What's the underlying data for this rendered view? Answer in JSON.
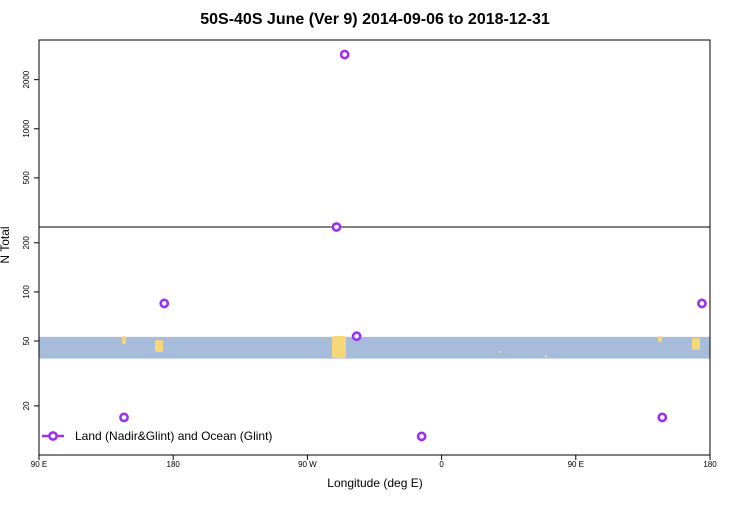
{
  "chart_data": {
    "type": "scatter",
    "title": "50S-40S June (Ver 9)   2014-09-06 to 2018-12-31",
    "x_label": "Longitude (deg E)",
    "y_label": "N Total",
    "xlim": [
      90,
      540
    ],
    "xticks": [
      {
        "value": 90,
        "label": "90 E"
      },
      180,
      {
        "value": 270,
        "label": "90 W"
      },
      {
        "value": 360,
        "label": "0"
      },
      {
        "value": 450,
        "label": "90 E"
      },
      {
        "value": 540,
        "label": "180"
      }
    ],
    "log_scale": true,
    "panels": [
      {
        "ylim": [
          10,
          250
        ],
        "yticks": [
          20,
          50,
          100,
          200
        ]
      },
      {
        "ylim": [
          250,
          3500
        ],
        "yticks": [
          500,
          1000,
          2000
        ]
      }
    ],
    "band": [
      39,
      53
    ],
    "band_color": "#a7bcdb",
    "series": [
      {
        "name": "Land (Nadir&Glint) and Ocean (Glint)",
        "color": "#9b30f0",
        "x": [
          147,
          174,
          289.5,
          295,
          303,
          346.6,
          508,
          534.6
        ],
        "values": [
          17,
          85,
          250,
          2850,
          53.5,
          13,
          17,
          85
        ]
      }
    ]
  }
}
